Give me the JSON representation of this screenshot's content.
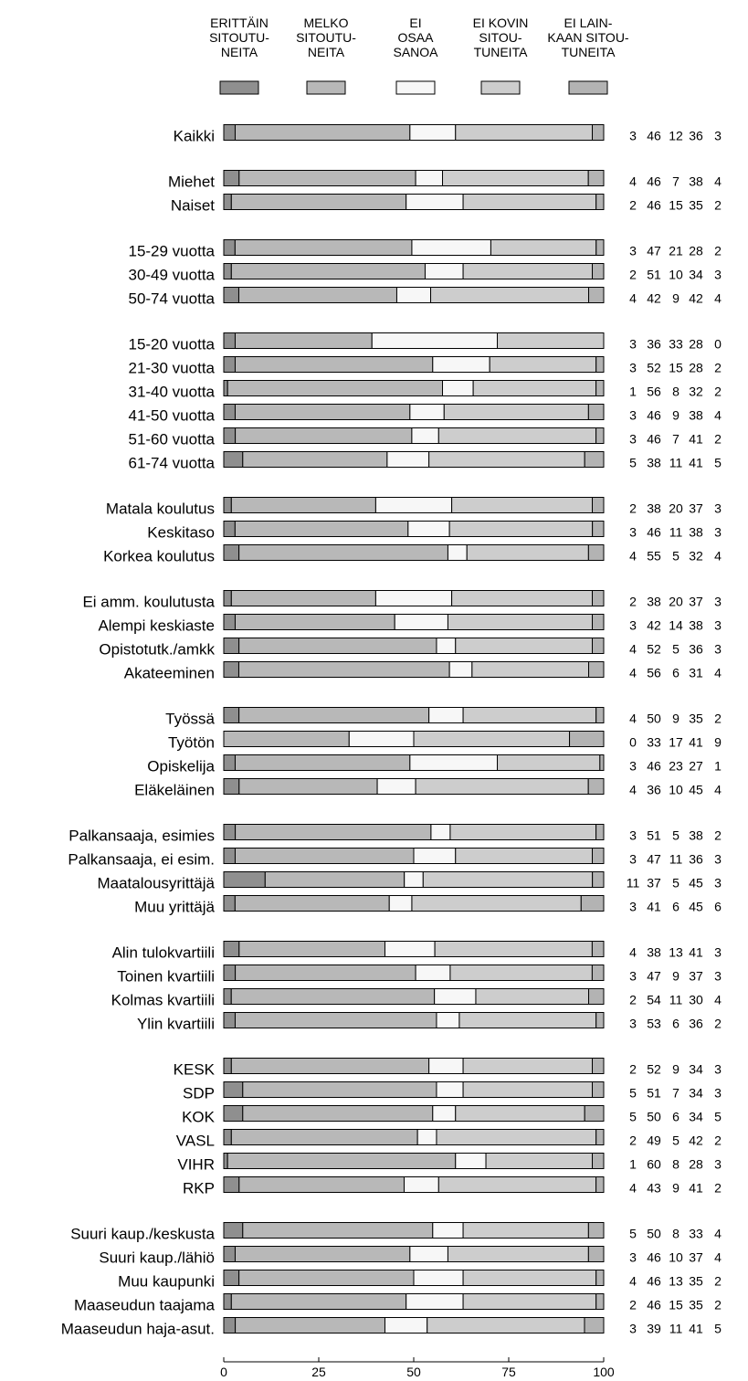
{
  "chart_data": {
    "type": "bar",
    "stacked": true,
    "orientation": "horizontal",
    "legend_placement": "top",
    "legend": [
      {
        "lines": [
          "ERITTÄIN",
          "SITOUTU-",
          "NEITA"
        ],
        "color": "#8f8f8f"
      },
      {
        "lines": [
          "MELKO",
          "SITOUTU-",
          "NEITA"
        ],
        "color": "#b8b8b8"
      },
      {
        "lines": [
          "EI",
          "OSAA",
          "SANOA"
        ],
        "color": "#f7f7f7"
      },
      {
        "lines": [
          "EI KOVIN",
          "SITOU-",
          "TUNEITA"
        ],
        "color": "#cdcdcd"
      },
      {
        "lines": [
          "EI LAIN-",
          "KAAN SITOU-",
          "TUNEITA"
        ],
        "color": "#b3b3b3"
      }
    ],
    "xlim": [
      0,
      100
    ],
    "xticks": [
      0,
      25,
      50,
      75,
      100
    ],
    "groups": [
      [
        {
          "label": "Kaikki",
          "values": [
            3,
            46,
            12,
            36,
            3
          ]
        }
      ],
      [
        {
          "label": "Miehet",
          "values": [
            4,
            46,
            7,
            38,
            4
          ]
        },
        {
          "label": "Naiset",
          "values": [
            2,
            46,
            15,
            35,
            2
          ]
        }
      ],
      [
        {
          "label": "15-29 vuotta",
          "values": [
            3,
            47,
            21,
            28,
            2
          ]
        },
        {
          "label": "30-49 vuotta",
          "values": [
            2,
            51,
            10,
            34,
            3
          ]
        },
        {
          "label": "50-74 vuotta",
          "values": [
            4,
            42,
            9,
            42,
            4
          ]
        }
      ],
      [
        {
          "label": "15-20 vuotta",
          "values": [
            3,
            36,
            33,
            28,
            0
          ]
        },
        {
          "label": "21-30 vuotta",
          "values": [
            3,
            52,
            15,
            28,
            2
          ]
        },
        {
          "label": "31-40 vuotta",
          "values": [
            1,
            56,
            8,
            32,
            2
          ]
        },
        {
          "label": "41-50 vuotta",
          "values": [
            3,
            46,
            9,
            38,
            4
          ]
        },
        {
          "label": "51-60 vuotta",
          "values": [
            3,
            46,
            7,
            41,
            2
          ]
        },
        {
          "label": "61-74 vuotta",
          "values": [
            5,
            38,
            11,
            41,
            5
          ]
        }
      ],
      [
        {
          "label": "Matala koulutus",
          "values": [
            2,
            38,
            20,
            37,
            3
          ]
        },
        {
          "label": "Keskitaso",
          "values": [
            3,
            46,
            11,
            38,
            3
          ]
        },
        {
          "label": "Korkea koulutus",
          "values": [
            4,
            55,
            5,
            32,
            4
          ]
        }
      ],
      [
        {
          "label": "Ei amm. koulutusta",
          "values": [
            2,
            38,
            20,
            37,
            3
          ]
        },
        {
          "label": "Alempi keskiaste",
          "values": [
            3,
            42,
            14,
            38,
            3
          ]
        },
        {
          "label": "Opistotutk./amkk",
          "values": [
            4,
            52,
            5,
            36,
            3
          ]
        },
        {
          "label": "Akateeminen",
          "values": [
            4,
            56,
            6,
            31,
            4
          ]
        }
      ],
      [
        {
          "label": "Työssä",
          "values": [
            4,
            50,
            9,
            35,
            2
          ]
        },
        {
          "label": "Työtön",
          "values": [
            0,
            33,
            17,
            41,
            9
          ]
        },
        {
          "label": "Opiskelija",
          "values": [
            3,
            46,
            23,
            27,
            1
          ]
        },
        {
          "label": "Eläkeläinen",
          "values": [
            4,
            36,
            10,
            45,
            4
          ]
        }
      ],
      [
        {
          "label": "Palkansaaja, esimies",
          "values": [
            3,
            51,
            5,
            38,
            2
          ]
        },
        {
          "label": "Palkansaaja, ei esim.",
          "values": [
            3,
            47,
            11,
            36,
            3
          ]
        },
        {
          "label": "Maatalousyrittäjä",
          "values": [
            11,
            37,
            5,
            45,
            3
          ]
        },
        {
          "label": "Muu yrittäjä",
          "values": [
            3,
            41,
            6,
            45,
            6
          ]
        }
      ],
      [
        {
          "label": "Alin tulokvartiili",
          "values": [
            4,
            38,
            13,
            41,
            3
          ]
        },
        {
          "label": "Toinen kvartiili",
          "values": [
            3,
            47,
            9,
            37,
            3
          ]
        },
        {
          "label": "Kolmas kvartiili",
          "values": [
            2,
            54,
            11,
            30,
            4
          ]
        },
        {
          "label": "Ylin kvartiili",
          "values": [
            3,
            53,
            6,
            36,
            2
          ]
        }
      ],
      [
        {
          "label": "KESK",
          "values": [
            2,
            52,
            9,
            34,
            3
          ]
        },
        {
          "label": "SDP",
          "values": [
            5,
            51,
            7,
            34,
            3
          ]
        },
        {
          "label": "KOK",
          "values": [
            5,
            50,
            6,
            34,
            5
          ]
        },
        {
          "label": "VASL",
          "values": [
            2,
            49,
            5,
            42,
            2
          ]
        },
        {
          "label": "VIHR",
          "values": [
            1,
            60,
            8,
            28,
            3
          ]
        },
        {
          "label": "RKP",
          "values": [
            4,
            43,
            9,
            41,
            2
          ]
        }
      ],
      [
        {
          "label": "Suuri kaup./keskusta",
          "values": [
            5,
            50,
            8,
            33,
            4
          ]
        },
        {
          "label": "Suuri kaup./lähiö",
          "values": [
            3,
            46,
            10,
            37,
            4
          ]
        },
        {
          "label": "Muu kaupunki",
          "values": [
            4,
            46,
            13,
            35,
            2
          ]
        },
        {
          "label": "Maaseudun taajama",
          "values": [
            2,
            46,
            15,
            35,
            2
          ]
        },
        {
          "label": "Maaseudun haja-asut.",
          "values": [
            3,
            39,
            11,
            41,
            5
          ]
        }
      ]
    ]
  }
}
